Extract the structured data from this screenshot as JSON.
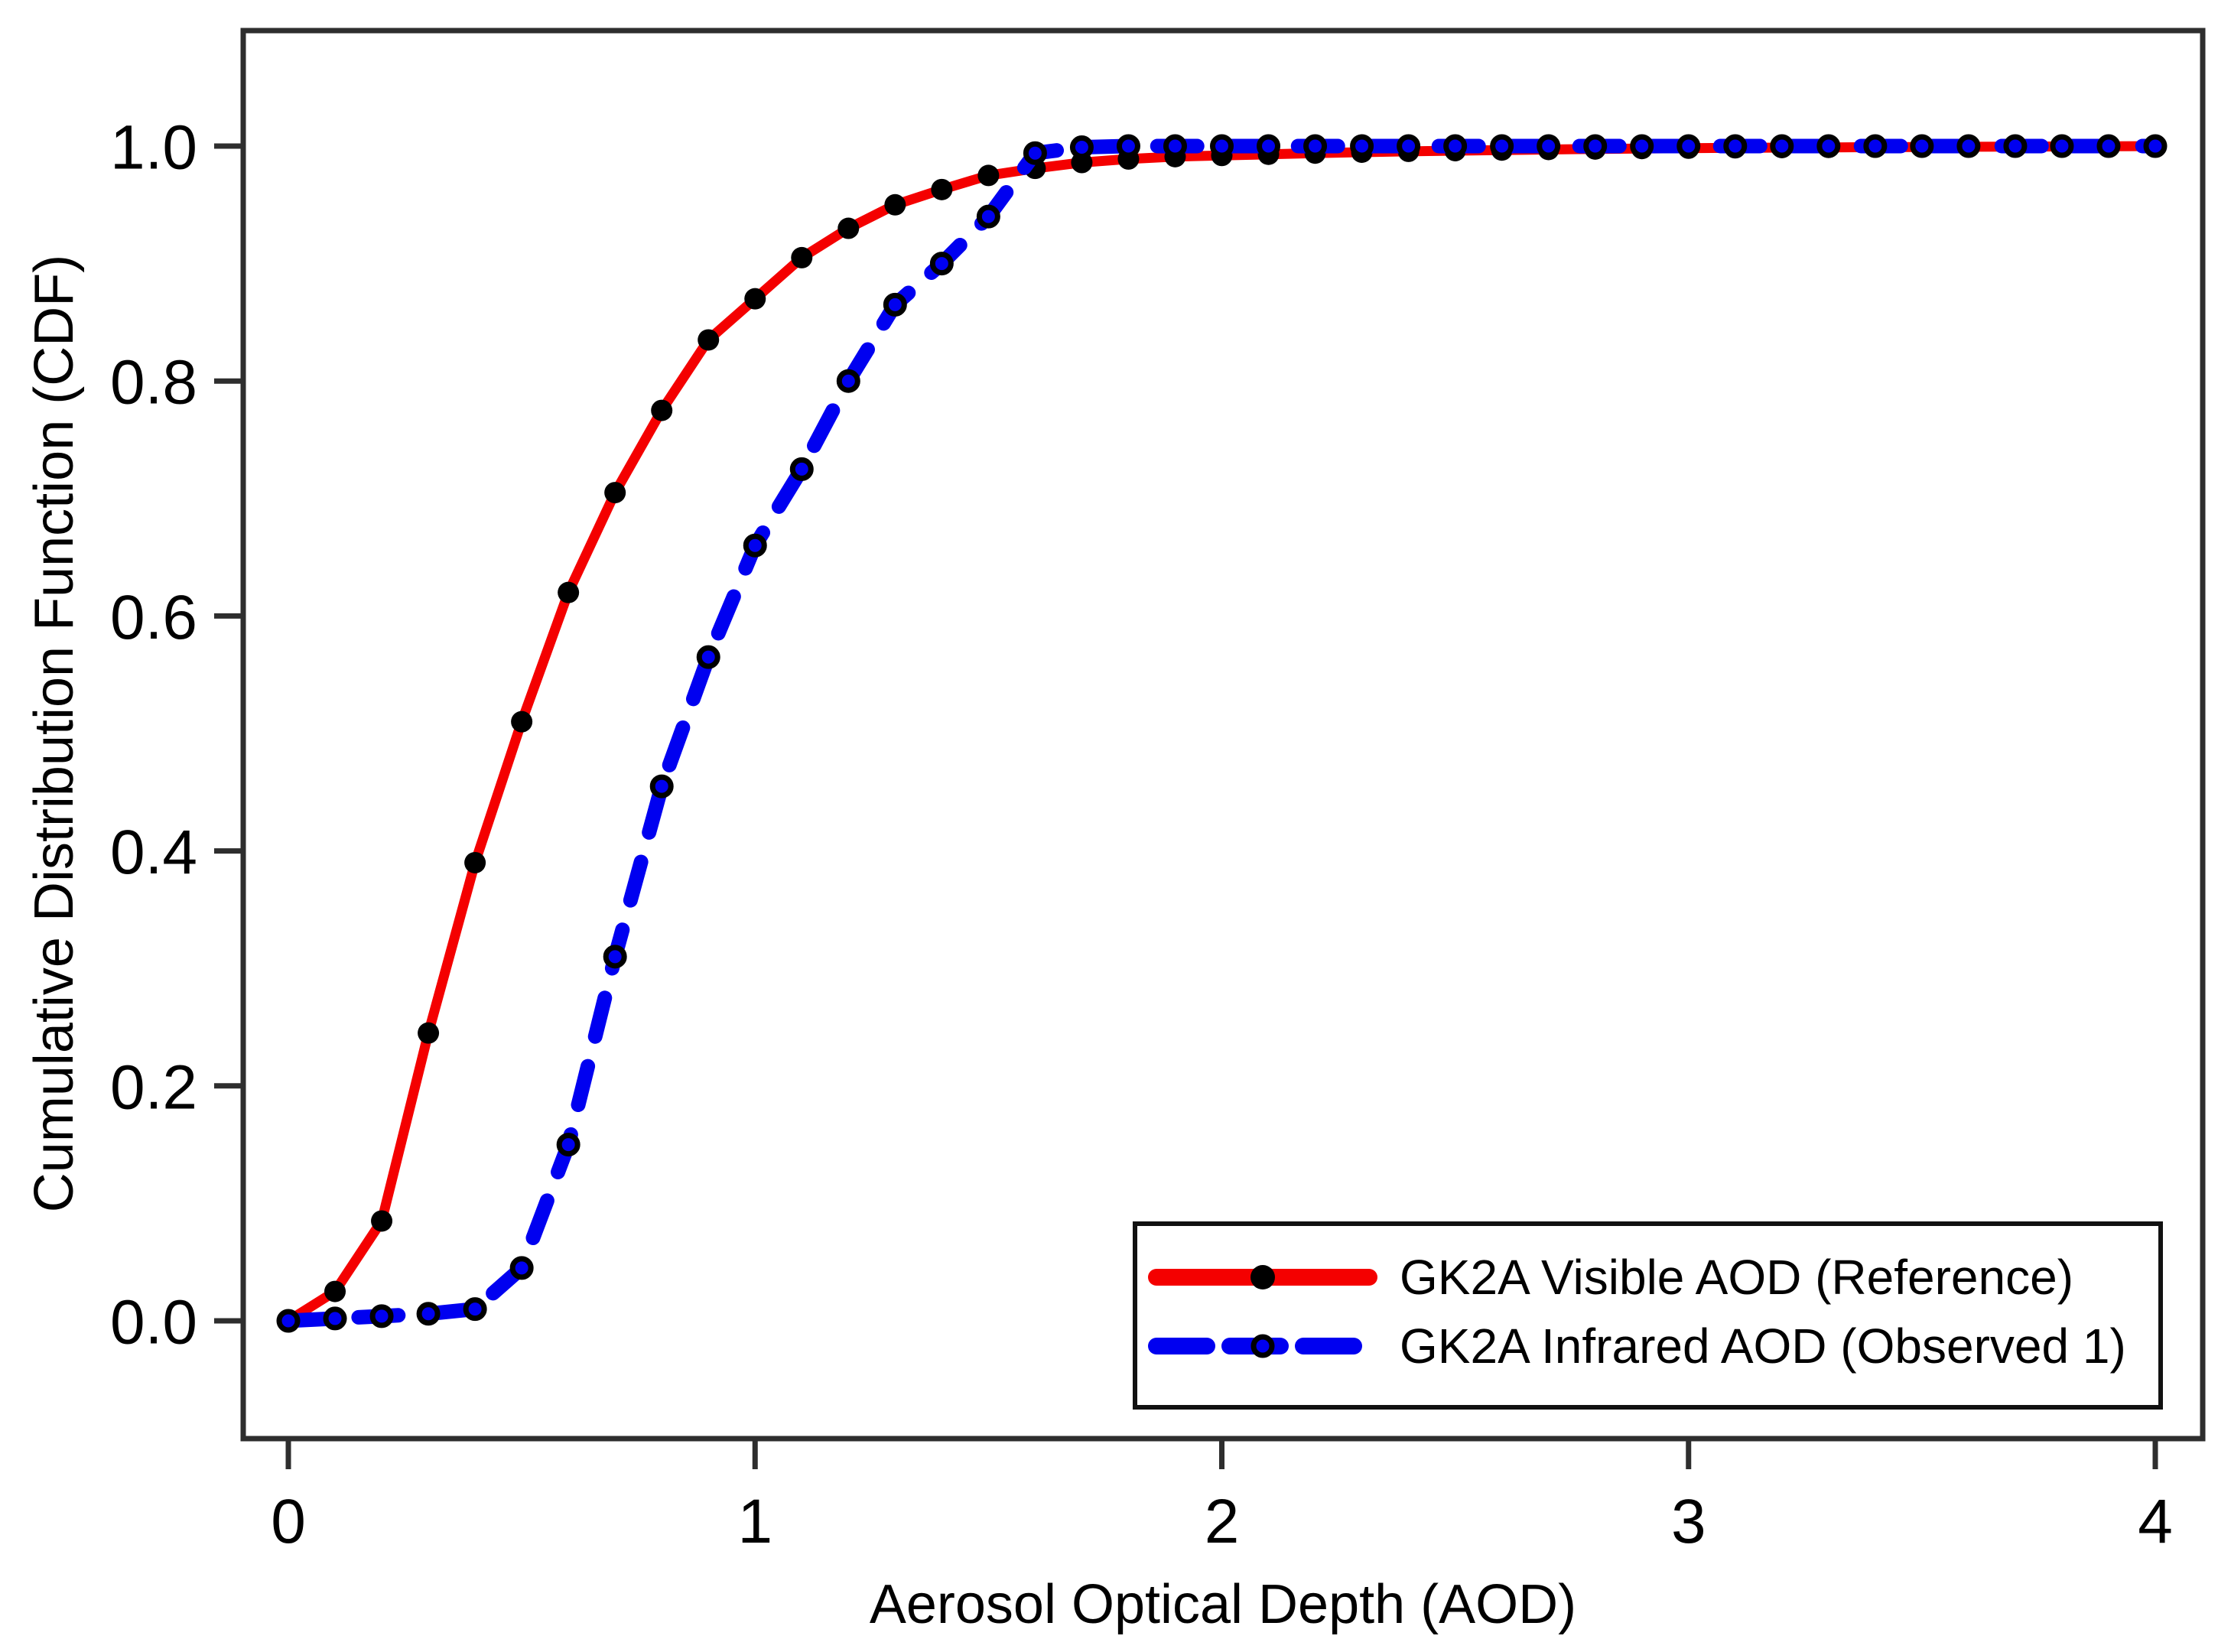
{
  "figure": {
    "background": "#ffffff",
    "border_color": "#2e2e2e"
  },
  "chart_data": {
    "type": "line",
    "title": "",
    "xlabel": "Aerosol Optical Depth (AOD)",
    "ylabel": "Cumulative Distribution Function (CDF)",
    "xlim": [
      0,
      4
    ],
    "ylim": [
      0.0,
      1.0
    ],
    "xticks": [
      "0",
      "1",
      "2",
      "3",
      "4"
    ],
    "yticks": [
      "0.0",
      "0.2",
      "0.4",
      "0.6",
      "0.8",
      "1.0"
    ],
    "grid": false,
    "legend_position": "lower right",
    "x": [
      0.0,
      0.1,
      0.2,
      0.3,
      0.4,
      0.5,
      0.6,
      0.7,
      0.8,
      0.9,
      1.0,
      1.1,
      1.2,
      1.3,
      1.4,
      1.5,
      1.6,
      1.7,
      1.8,
      1.9,
      2.0,
      2.1,
      2.2,
      2.3,
      2.4,
      2.5,
      2.6,
      2.7,
      2.8,
      2.9,
      3.0,
      3.1,
      3.2,
      3.3,
      3.4,
      3.5,
      3.6,
      3.7,
      3.8,
      3.9,
      4.0
    ],
    "series": [
      {
        "name": "GK2A Visible AOD (Reference)",
        "color": "#f40000",
        "style": "solid",
        "marker": "filled-black-dot",
        "values": [
          0.0,
          0.025,
          0.085,
          0.245,
          0.39,
          0.51,
          0.62,
          0.705,
          0.775,
          0.835,
          0.87,
          0.905,
          0.93,
          0.95,
          0.963,
          0.975,
          0.981,
          0.986,
          0.989,
          0.991,
          0.992,
          0.993,
          0.994,
          0.9948,
          0.9955,
          0.9961,
          0.9966,
          0.9971,
          0.9975,
          0.9979,
          0.9982,
          0.9985,
          0.9987,
          0.9989,
          0.9991,
          0.9992,
          0.9994,
          0.9995,
          0.9997,
          0.9998,
          1.0
        ]
      },
      {
        "name": "GK2A Infrared AOD (Observed 1)",
        "color": "#0000f0",
        "style": "dashed",
        "marker": "open-black-circle-blue-fill",
        "values": [
          0.0,
          0.002,
          0.004,
          0.006,
          0.01,
          0.045,
          0.15,
          0.31,
          0.455,
          0.565,
          0.66,
          0.725,
          0.8,
          0.865,
          0.9,
          0.94,
          0.994,
          0.999,
          1.0,
          1.0,
          1.0,
          1.0,
          1.0,
          1.0,
          1.0,
          1.0,
          1.0,
          1.0,
          1.0,
          1.0,
          1.0,
          1.0,
          1.0,
          1.0,
          1.0,
          1.0,
          1.0,
          1.0,
          1.0,
          1.0,
          1.0
        ]
      }
    ]
  }
}
